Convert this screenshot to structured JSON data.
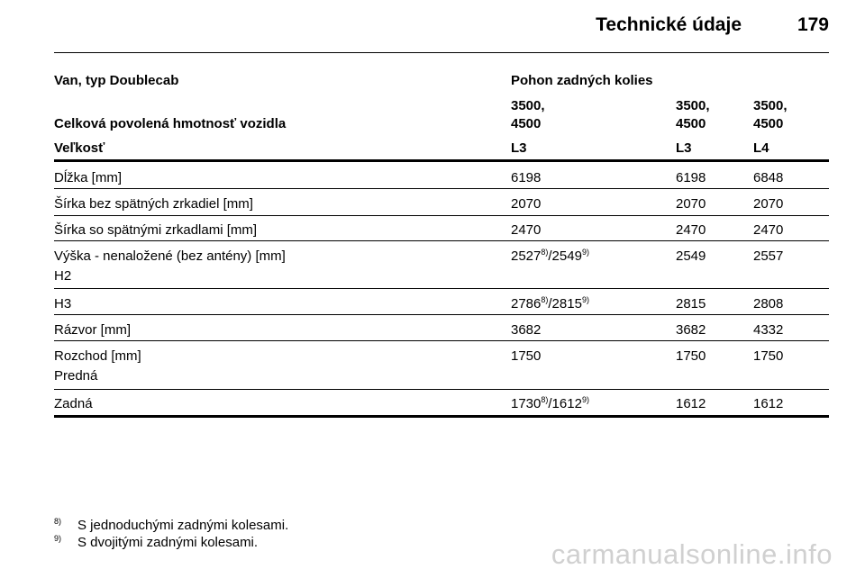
{
  "header": {
    "title": "Technické údaje",
    "page_number": "179"
  },
  "table": {
    "vehicle_label": "Van, typ Doublecab",
    "drive_label": "Pohon zadných kolies",
    "weight_label": "Celková povolená hmotnosť vozidla",
    "weights": [
      [
        "3500,",
        "4500"
      ],
      [
        "3500,",
        "4500"
      ],
      [
        "3500,",
        "4500"
      ]
    ],
    "size_label": "Veľkosť",
    "sizes": [
      "L3",
      "L3",
      "L4"
    ],
    "rows": [
      {
        "label": "Dĺžka [mm]",
        "v1": "6198",
        "v2": "6198",
        "v3": "6848"
      },
      {
        "label": "Šírka bez spätných zrkadiel [mm]",
        "v1": "2070",
        "v2": "2070",
        "v3": "2070"
      },
      {
        "label": "Šírka so spätnými zrkadlami [mm]",
        "v1": "2470",
        "v2": "2470",
        "v3": "2470"
      },
      {
        "label": "Výška - nenaložené (bez antény) [mm]",
        "sublabel": "H2",
        "v1a": "2527",
        "v1a_sup": "8)",
        "v1b": "/2549",
        "v1b_sup": "9)",
        "v2": "2549",
        "v3": "2557"
      },
      {
        "label": "H3",
        "v1a": "2786",
        "v1a_sup": "8)",
        "v1b": "/2815",
        "v1b_sup": "9)",
        "v2": "2815",
        "v3": "2808"
      },
      {
        "label": "Rázvor [mm]",
        "v1": "3682",
        "v2": "3682",
        "v3": "4332"
      },
      {
        "label": "Rozchod [mm]",
        "sublabel": "Predná",
        "v1": "1750",
        "v2": "1750",
        "v3": "1750"
      },
      {
        "label": "Zadná",
        "v1a": "1730",
        "v1a_sup": "8)",
        "v1b": "/1612",
        "v1b_sup": "9)",
        "v2": "1612",
        "v3": "1612"
      }
    ]
  },
  "footnotes": [
    {
      "mark": "8)",
      "text": "S jednoduchými zadnými kolesami."
    },
    {
      "mark": "9)",
      "text": "S dvojitými zadnými kolesami."
    }
  ],
  "watermark": "carmanualsonline.info"
}
